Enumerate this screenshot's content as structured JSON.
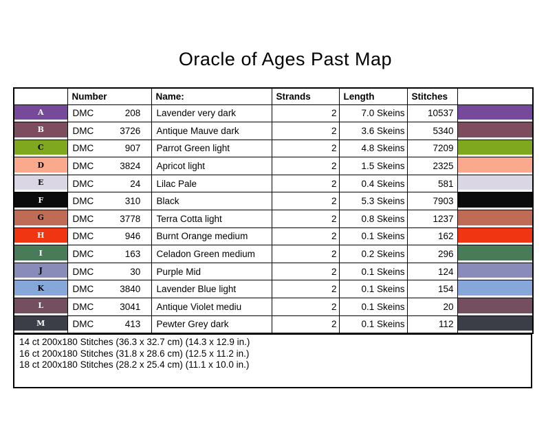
{
  "title": "Oracle of Ages Past Map",
  "table": {
    "headers": {
      "letter": "",
      "number": "Number",
      "name": "Name:",
      "strands": "Strands",
      "length": "Length",
      "stitches": "Stitches",
      "swatch": ""
    },
    "rows": [
      {
        "letter": "A",
        "brand": "DMC",
        "number": "208",
        "name": "Lavender very dark",
        "strands": "2",
        "length": "7.0 Skeins",
        "stitches": "10537",
        "color": "#77499A",
        "letter_color": "#ffffff"
      },
      {
        "letter": "B",
        "brand": "DMC",
        "number": "3726",
        "name": "Antique Mauve dark",
        "strands": "2",
        "length": "3.6 Skeins",
        "stitches": "5340",
        "color": "#7D4C5E",
        "letter_color": "#ffffff"
      },
      {
        "letter": "C",
        "brand": "DMC",
        "number": "907",
        "name": "Parrot Green light",
        "strands": "2",
        "length": "4.8 Skeins",
        "stitches": "7209",
        "color": "#7FA81F",
        "letter_color": "#000000"
      },
      {
        "letter": "D",
        "brand": "DMC",
        "number": "3824",
        "name": "Apricot light",
        "strands": "2",
        "length": "1.5 Skeins",
        "stitches": "2325",
        "color": "#FAA98D",
        "letter_color": "#000000"
      },
      {
        "letter": "E",
        "brand": "DMC",
        "number": "24",
        "name": "Lilac Pale",
        "strands": "2",
        "length": "0.4 Skeins",
        "stitches": "581",
        "color": "#DBD6E3",
        "letter_color": "#000000"
      },
      {
        "letter": "F",
        "brand": "DMC",
        "number": "310",
        "name": "Black",
        "strands": "2",
        "length": "5.3 Skeins",
        "stitches": "7903",
        "color": "#0B0B0B",
        "letter_color": "#ffffff"
      },
      {
        "letter": "G",
        "brand": "DMC",
        "number": "3778",
        "name": "Terra Cotta light",
        "strands": "2",
        "length": "0.8 Skeins",
        "stitches": "1237",
        "color": "#BF6C56",
        "letter_color": "#000000"
      },
      {
        "letter": "H",
        "brand": "DMC",
        "number": "946",
        "name": "Burnt Orange medium",
        "strands": "2",
        "length": "0.1 Skeins",
        "stitches": "162",
        "color": "#EF3511",
        "letter_color": "#ffffff"
      },
      {
        "letter": "I",
        "brand": "DMC",
        "number": "163",
        "name": "Celadon Green medium",
        "strands": "2",
        "length": "0.2 Skeins",
        "stitches": "296",
        "color": "#497B58",
        "letter_color": "#ffffff"
      },
      {
        "letter": "J",
        "brand": "DMC",
        "number": "30",
        "name": "Purple Mid",
        "strands": "2",
        "length": "0.1 Skeins",
        "stitches": "124",
        "color": "#898CB9",
        "letter_color": "#000000"
      },
      {
        "letter": "K",
        "brand": "DMC",
        "number": "3840",
        "name": "Lavender Blue light",
        "strands": "2",
        "length": "0.1 Skeins",
        "stitches": "154",
        "color": "#85A7D9",
        "letter_color": "#000000"
      },
      {
        "letter": "L",
        "brand": "DMC",
        "number": "3041",
        "name": "Antique Violet mediu",
        "strands": "2",
        "length": "0.1 Skeins",
        "stitches": "20",
        "color": "#744F60",
        "letter_color": "#ffffff"
      },
      {
        "letter": "M",
        "brand": "DMC",
        "number": "413",
        "name": "Pewter Grey dark",
        "strands": "2",
        "length": "0.1 Skeins",
        "stitches": "112",
        "color": "#3C3E47",
        "letter_color": "#ffffff"
      }
    ]
  },
  "footer": {
    "lines": [
      "14 ct 200x180 Stitches (36.3 x 32.7 cm) (14.3 x 12.9 in.)",
      "16 ct 200x180 Stitches (31.8 x 28.6 cm) (12.5 x 11.2 in.)",
      "18 ct 200x180 Stitches (28.2 x 25.4 cm) (11.1 x 10.0 in.)"
    ]
  }
}
